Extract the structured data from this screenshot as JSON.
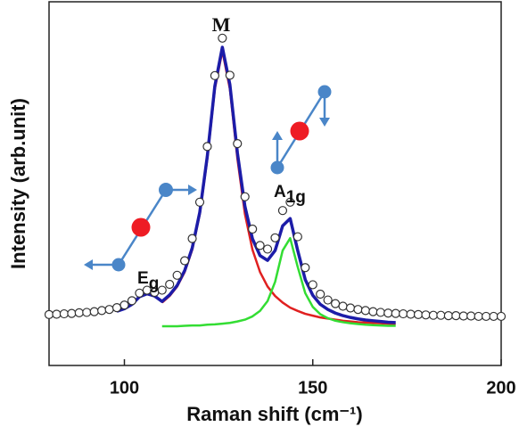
{
  "chart_data": {
    "type": "line",
    "x_label": "Raman shift (cm⁻¹)",
    "y_label": "Intensity (arb.unit)",
    "xlim": [
      80,
      200
    ],
    "ylim": [
      0,
      1
    ],
    "xticks": [
      100,
      150,
      200
    ],
    "annotations": [
      {
        "text": "M"
      },
      {
        "text": "A",
        "subscript": "1g"
      },
      {
        "text": "E",
        "subscript": "g"
      }
    ],
    "series": [
      {
        "type": "line",
        "color": "#e02020",
        "x": [
          110,
          112,
          114,
          116,
          118,
          120,
          122,
          124,
          126,
          128,
          130,
          132,
          134,
          136,
          138,
          140,
          142,
          144,
          146,
          148,
          150,
          152,
          154,
          156,
          158,
          160,
          162,
          164,
          166,
          168,
          170,
          172
        ],
        "values": [
          0.173,
          0.191,
          0.217,
          0.257,
          0.318,
          0.416,
          0.568,
          0.76,
          0.865,
          0.76,
          0.568,
          0.416,
          0.318,
          0.257,
          0.217,
          0.191,
          0.173,
          0.159,
          0.15,
          0.142,
          0.137,
          0.132,
          0.129,
          0.126,
          0.123,
          0.121,
          0.119,
          0.118,
          0.117,
          0.116,
          0.115,
          0.114
        ]
      },
      {
        "type": "line",
        "color": "#33dd33",
        "x": [
          110,
          112,
          114,
          116,
          118,
          120,
          122,
          124,
          126,
          128,
          130,
          132,
          134,
          136,
          138,
          140,
          142,
          144,
          146,
          148,
          150,
          152,
          154,
          156,
          158,
          160,
          162,
          164,
          166,
          168,
          170,
          172
        ],
        "values": [
          0.108,
          0.108,
          0.108,
          0.109,
          0.11,
          0.11,
          0.112,
          0.113,
          0.115,
          0.117,
          0.121,
          0.126,
          0.135,
          0.15,
          0.177,
          0.23,
          0.316,
          0.35,
          0.271,
          0.199,
          0.161,
          0.141,
          0.13,
          0.123,
          0.119,
          0.116,
          0.114,
          0.112,
          0.111,
          0.11,
          0.109,
          0.109
        ]
      },
      {
        "type": "line",
        "color": "#1c1ca8",
        "x": [
          98,
          100,
          102,
          104,
          106,
          108,
          110,
          112,
          114,
          116,
          118,
          120,
          122,
          124,
          126,
          128,
          130,
          132,
          134,
          136,
          138,
          140,
          142,
          144,
          146,
          148,
          150,
          152,
          154,
          156,
          158,
          160,
          162,
          164,
          166,
          168,
          170,
          172
        ],
        "values": [
          0.149,
          0.156,
          0.168,
          0.189,
          0.197,
          0.191,
          0.176,
          0.194,
          0.22,
          0.261,
          0.323,
          0.421,
          0.575,
          0.768,
          0.875,
          0.772,
          0.584,
          0.437,
          0.348,
          0.302,
          0.289,
          0.316,
          0.384,
          0.404,
          0.316,
          0.236,
          0.193,
          0.168,
          0.154,
          0.144,
          0.137,
          0.132,
          0.128,
          0.125,
          0.123,
          0.121,
          0.119,
          0.118
        ]
      },
      {
        "type": "scatter",
        "color": "#333333",
        "x": [
          80,
          82,
          84,
          86,
          88,
          90,
          92,
          94,
          96,
          98,
          100,
          102,
          104,
          106,
          108,
          110,
          112,
          114,
          116,
          118,
          120,
          122,
          124,
          126,
          128,
          130,
          132,
          134,
          136,
          138,
          140,
          142,
          144,
          146,
          148,
          150,
          152,
          154,
          156,
          158,
          160,
          162,
          164,
          166,
          168,
          170,
          172,
          174,
          176,
          178,
          180,
          182,
          184,
          186,
          188,
          190,
          192,
          194,
          196,
          198,
          200
        ],
        "values": [
          0.14,
          0.141,
          0.142,
          0.143,
          0.145,
          0.146,
          0.148,
          0.151,
          0.154,
          0.159,
          0.166,
          0.178,
          0.199,
          0.207,
          0.201,
          0.207,
          0.223,
          0.248,
          0.288,
          0.349,
          0.449,
          0.602,
          0.797,
          0.9,
          0.798,
          0.61,
          0.464,
          0.375,
          0.33,
          0.32,
          0.351,
          0.426,
          0.449,
          0.354,
          0.269,
          0.222,
          0.196,
          0.18,
          0.17,
          0.163,
          0.158,
          0.154,
          0.151,
          0.148,
          0.146,
          0.144,
          0.143,
          0.142,
          0.141,
          0.14,
          0.139,
          0.138,
          0.138,
          0.137,
          0.137,
          0.136,
          0.136,
          0.135,
          0.135,
          0.135,
          0.135
        ]
      }
    ]
  }
}
